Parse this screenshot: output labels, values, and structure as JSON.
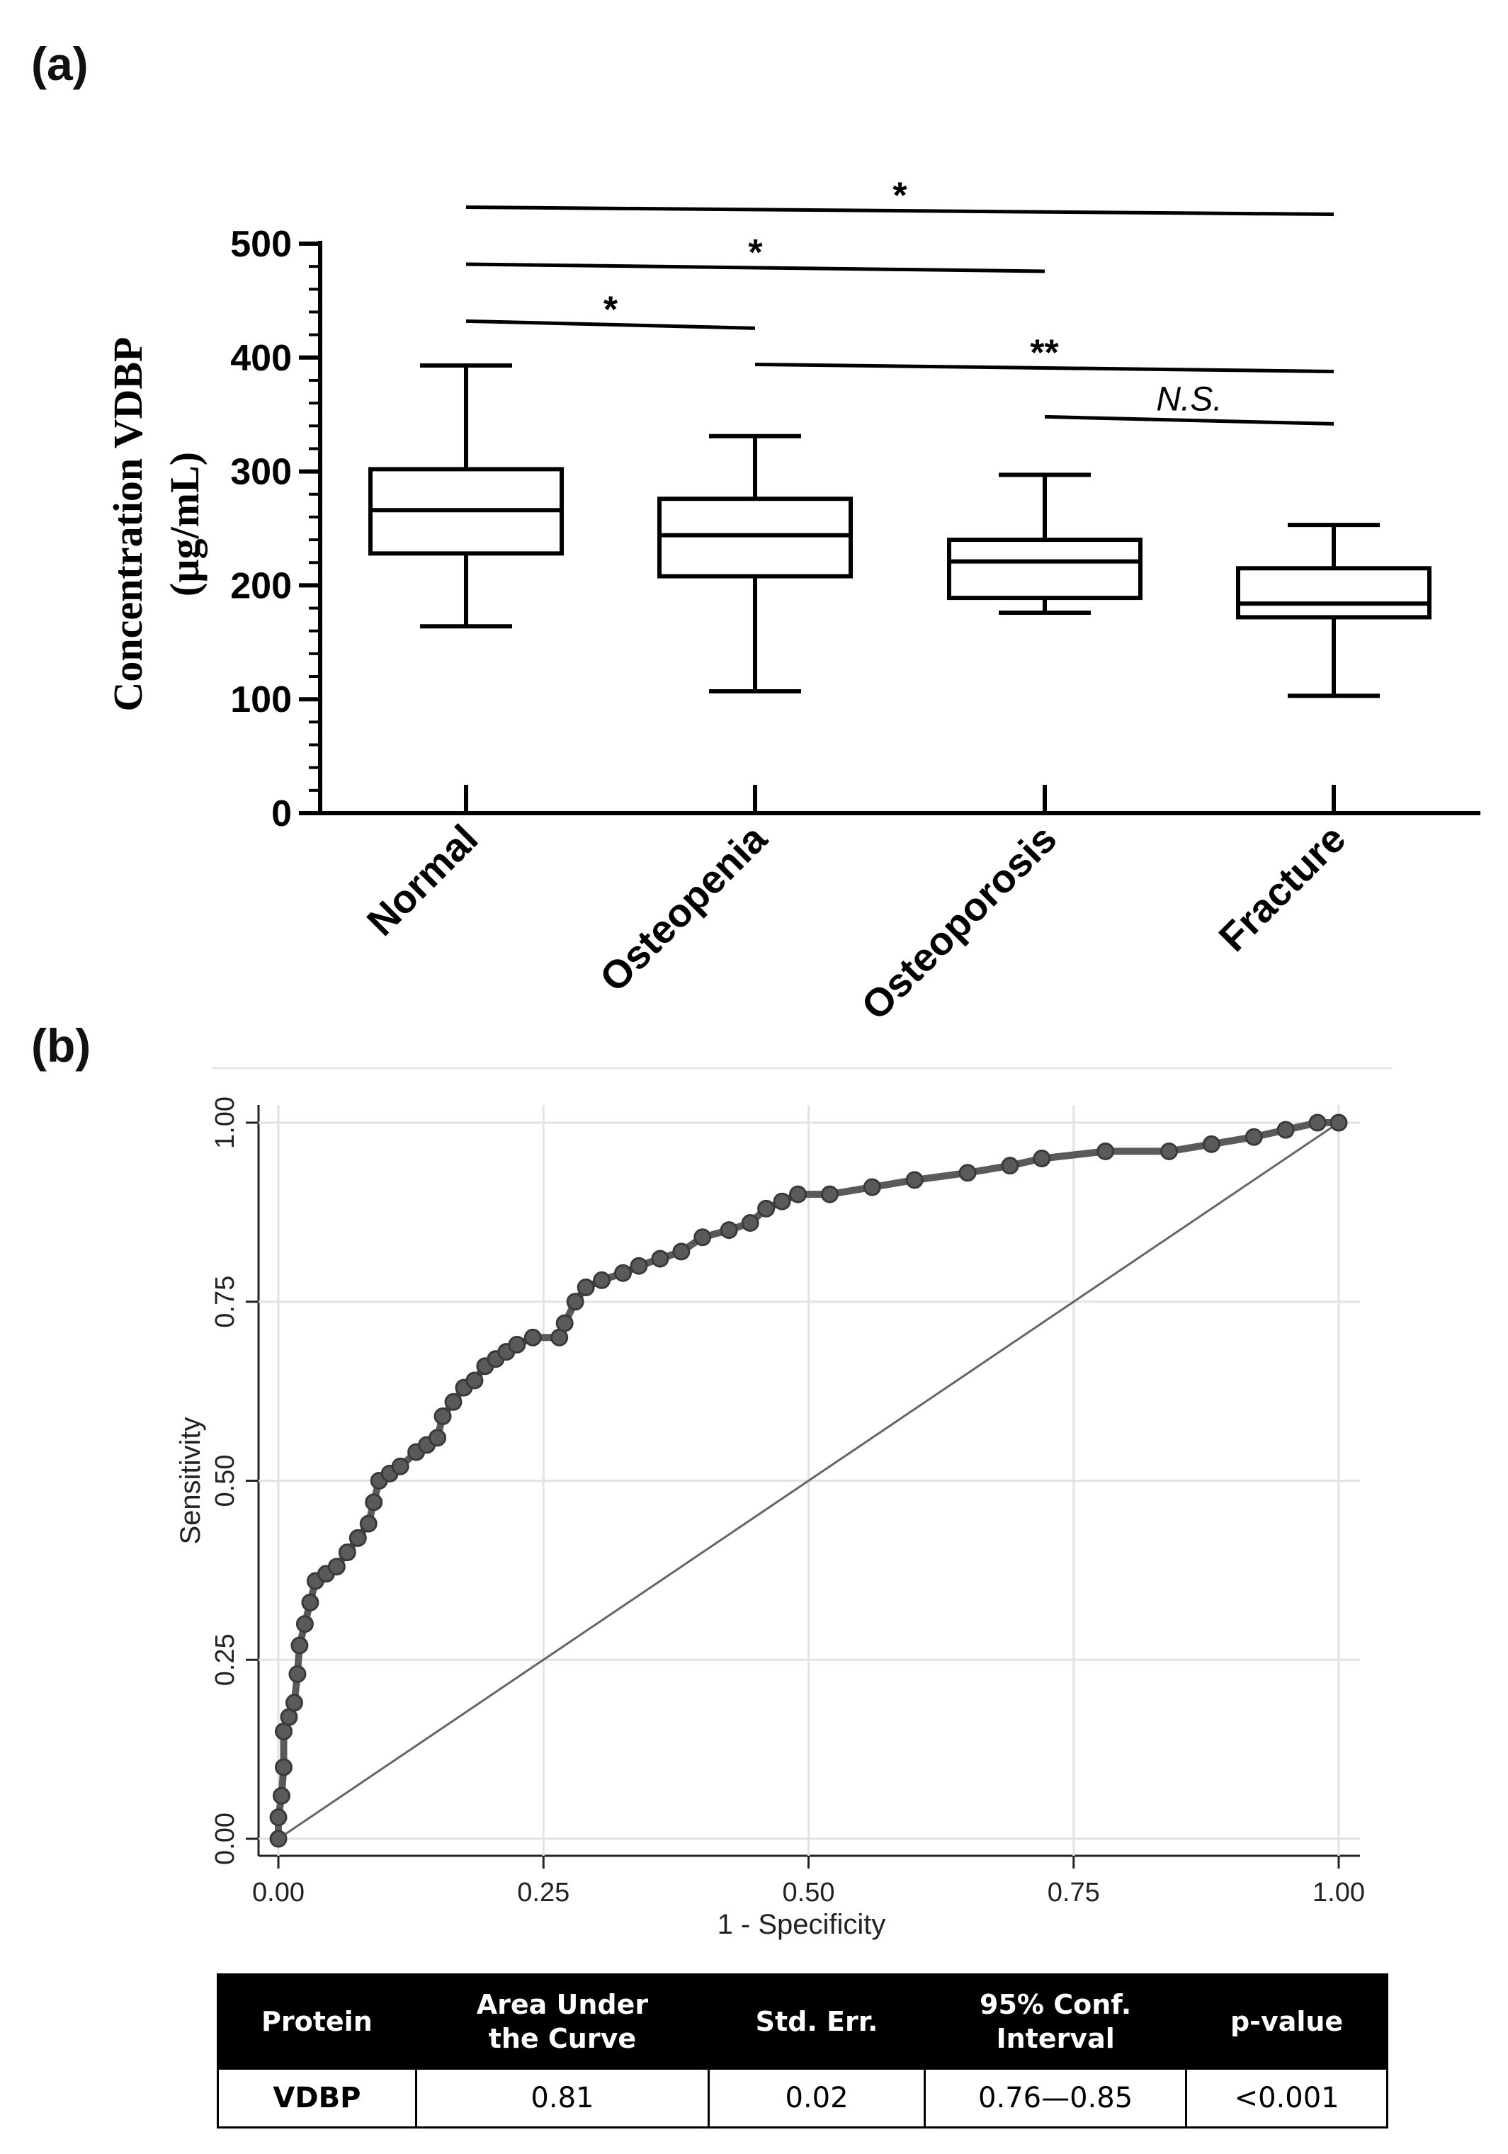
{
  "panel_a_label": "(a)",
  "panel_b_label": "(b)",
  "chart_data": [
    {
      "type": "boxplot",
      "ylabel_line1": "Concentration VDBP",
      "ylabel_line2": "(µg/mL)",
      "ylim": [
        0,
        500
      ],
      "yticks": [
        0,
        100,
        200,
        300,
        400,
        500
      ],
      "categories": [
        "Normal",
        "Osteopenia",
        "Osteoporosis",
        "Fracture"
      ],
      "boxes": [
        {
          "name": "Normal",
          "min": 164,
          "q1": 228,
          "median": 266,
          "q3": 302,
          "max": 393
        },
        {
          "name": "Osteopenia",
          "min": 107,
          "q1": 208,
          "median": 244,
          "q3": 276,
          "max": 331
        },
        {
          "name": "Osteoporosis",
          "min": 176,
          "q1": 189,
          "median": 221,
          "q3": 240,
          "max": 297
        },
        {
          "name": "Fracture",
          "min": 103,
          "q1": 172,
          "median": 184,
          "q3": 215,
          "max": 253
        }
      ],
      "significance": [
        {
          "from": 0,
          "to": 3,
          "label": "*",
          "y": 532
        },
        {
          "from": 0,
          "to": 2,
          "label": "*",
          "y": 482
        },
        {
          "from": 0,
          "to": 1,
          "label": "*",
          "y": 432
        },
        {
          "from": 1,
          "to": 3,
          "label": "**",
          "y": 394
        },
        {
          "from": 2,
          "to": 3,
          "label": "N.S.",
          "y": 348
        }
      ],
      "grid": false
    },
    {
      "type": "line",
      "xlabel": "1 - Specificity",
      "ylabel": "Sensitivity",
      "xlim": [
        0,
        1
      ],
      "ylim": [
        0,
        1
      ],
      "xticks": [
        "0.00",
        "0.25",
        "0.50",
        "0.75",
        "1.00"
      ],
      "yticks": [
        "0.00",
        "0.25",
        "0.50",
        "0.75",
        "1.00"
      ],
      "grid": true,
      "series": [
        {
          "values": [
            [
              0.0,
              0.0
            ],
            [
              0.0,
              0.03
            ],
            [
              0.003,
              0.06
            ],
            [
              0.005,
              0.1
            ],
            [
              0.005,
              0.15
            ],
            [
              0.01,
              0.17
            ],
            [
              0.015,
              0.19
            ],
            [
              0.018,
              0.23
            ],
            [
              0.02,
              0.27
            ],
            [
              0.025,
              0.3
            ],
            [
              0.03,
              0.33
            ],
            [
              0.035,
              0.36
            ],
            [
              0.045,
              0.37
            ],
            [
              0.055,
              0.38
            ],
            [
              0.065,
              0.4
            ],
            [
              0.075,
              0.42
            ],
            [
              0.085,
              0.44
            ],
            [
              0.09,
              0.47
            ],
            [
              0.095,
              0.5
            ],
            [
              0.105,
              0.51
            ],
            [
              0.115,
              0.52
            ],
            [
              0.13,
              0.54
            ],
            [
              0.14,
              0.55
            ],
            [
              0.15,
              0.56
            ],
            [
              0.155,
              0.59
            ],
            [
              0.165,
              0.61
            ],
            [
              0.175,
              0.63
            ],
            [
              0.185,
              0.64
            ],
            [
              0.195,
              0.66
            ],
            [
              0.205,
              0.67
            ],
            [
              0.215,
              0.68
            ],
            [
              0.225,
              0.69
            ],
            [
              0.24,
              0.7
            ],
            [
              0.265,
              0.7
            ],
            [
              0.27,
              0.72
            ],
            [
              0.28,
              0.75
            ],
            [
              0.29,
              0.77
            ],
            [
              0.305,
              0.78
            ],
            [
              0.325,
              0.79
            ],
            [
              0.34,
              0.8
            ],
            [
              0.36,
              0.81
            ],
            [
              0.38,
              0.82
            ],
            [
              0.4,
              0.84
            ],
            [
              0.425,
              0.85
            ],
            [
              0.445,
              0.86
            ],
            [
              0.46,
              0.88
            ],
            [
              0.475,
              0.89
            ],
            [
              0.49,
              0.9
            ],
            [
              0.52,
              0.9
            ],
            [
              0.56,
              0.91
            ],
            [
              0.6,
              0.92
            ],
            [
              0.65,
              0.93
            ],
            [
              0.69,
              0.94
            ],
            [
              0.72,
              0.95
            ],
            [
              0.78,
              0.96
            ],
            [
              0.84,
              0.96
            ],
            [
              0.88,
              0.97
            ],
            [
              0.92,
              0.98
            ],
            [
              0.95,
              0.99
            ],
            [
              0.98,
              1.0
            ],
            [
              1.0,
              1.0
            ]
          ]
        },
        {
          "values": [
            [
              0,
              0
            ],
            [
              1,
              1
            ]
          ]
        }
      ]
    }
  ],
  "table": {
    "headers": [
      [
        "Protein"
      ],
      [
        "Area Under",
        "the Curve"
      ],
      [
        "Std. Err."
      ],
      [
        "95% Conf.",
        "Interval"
      ],
      [
        "p-value"
      ]
    ],
    "row": [
      "VDBP",
      "0.81",
      "0.02",
      "0.76—0.85",
      "<0.001"
    ]
  }
}
